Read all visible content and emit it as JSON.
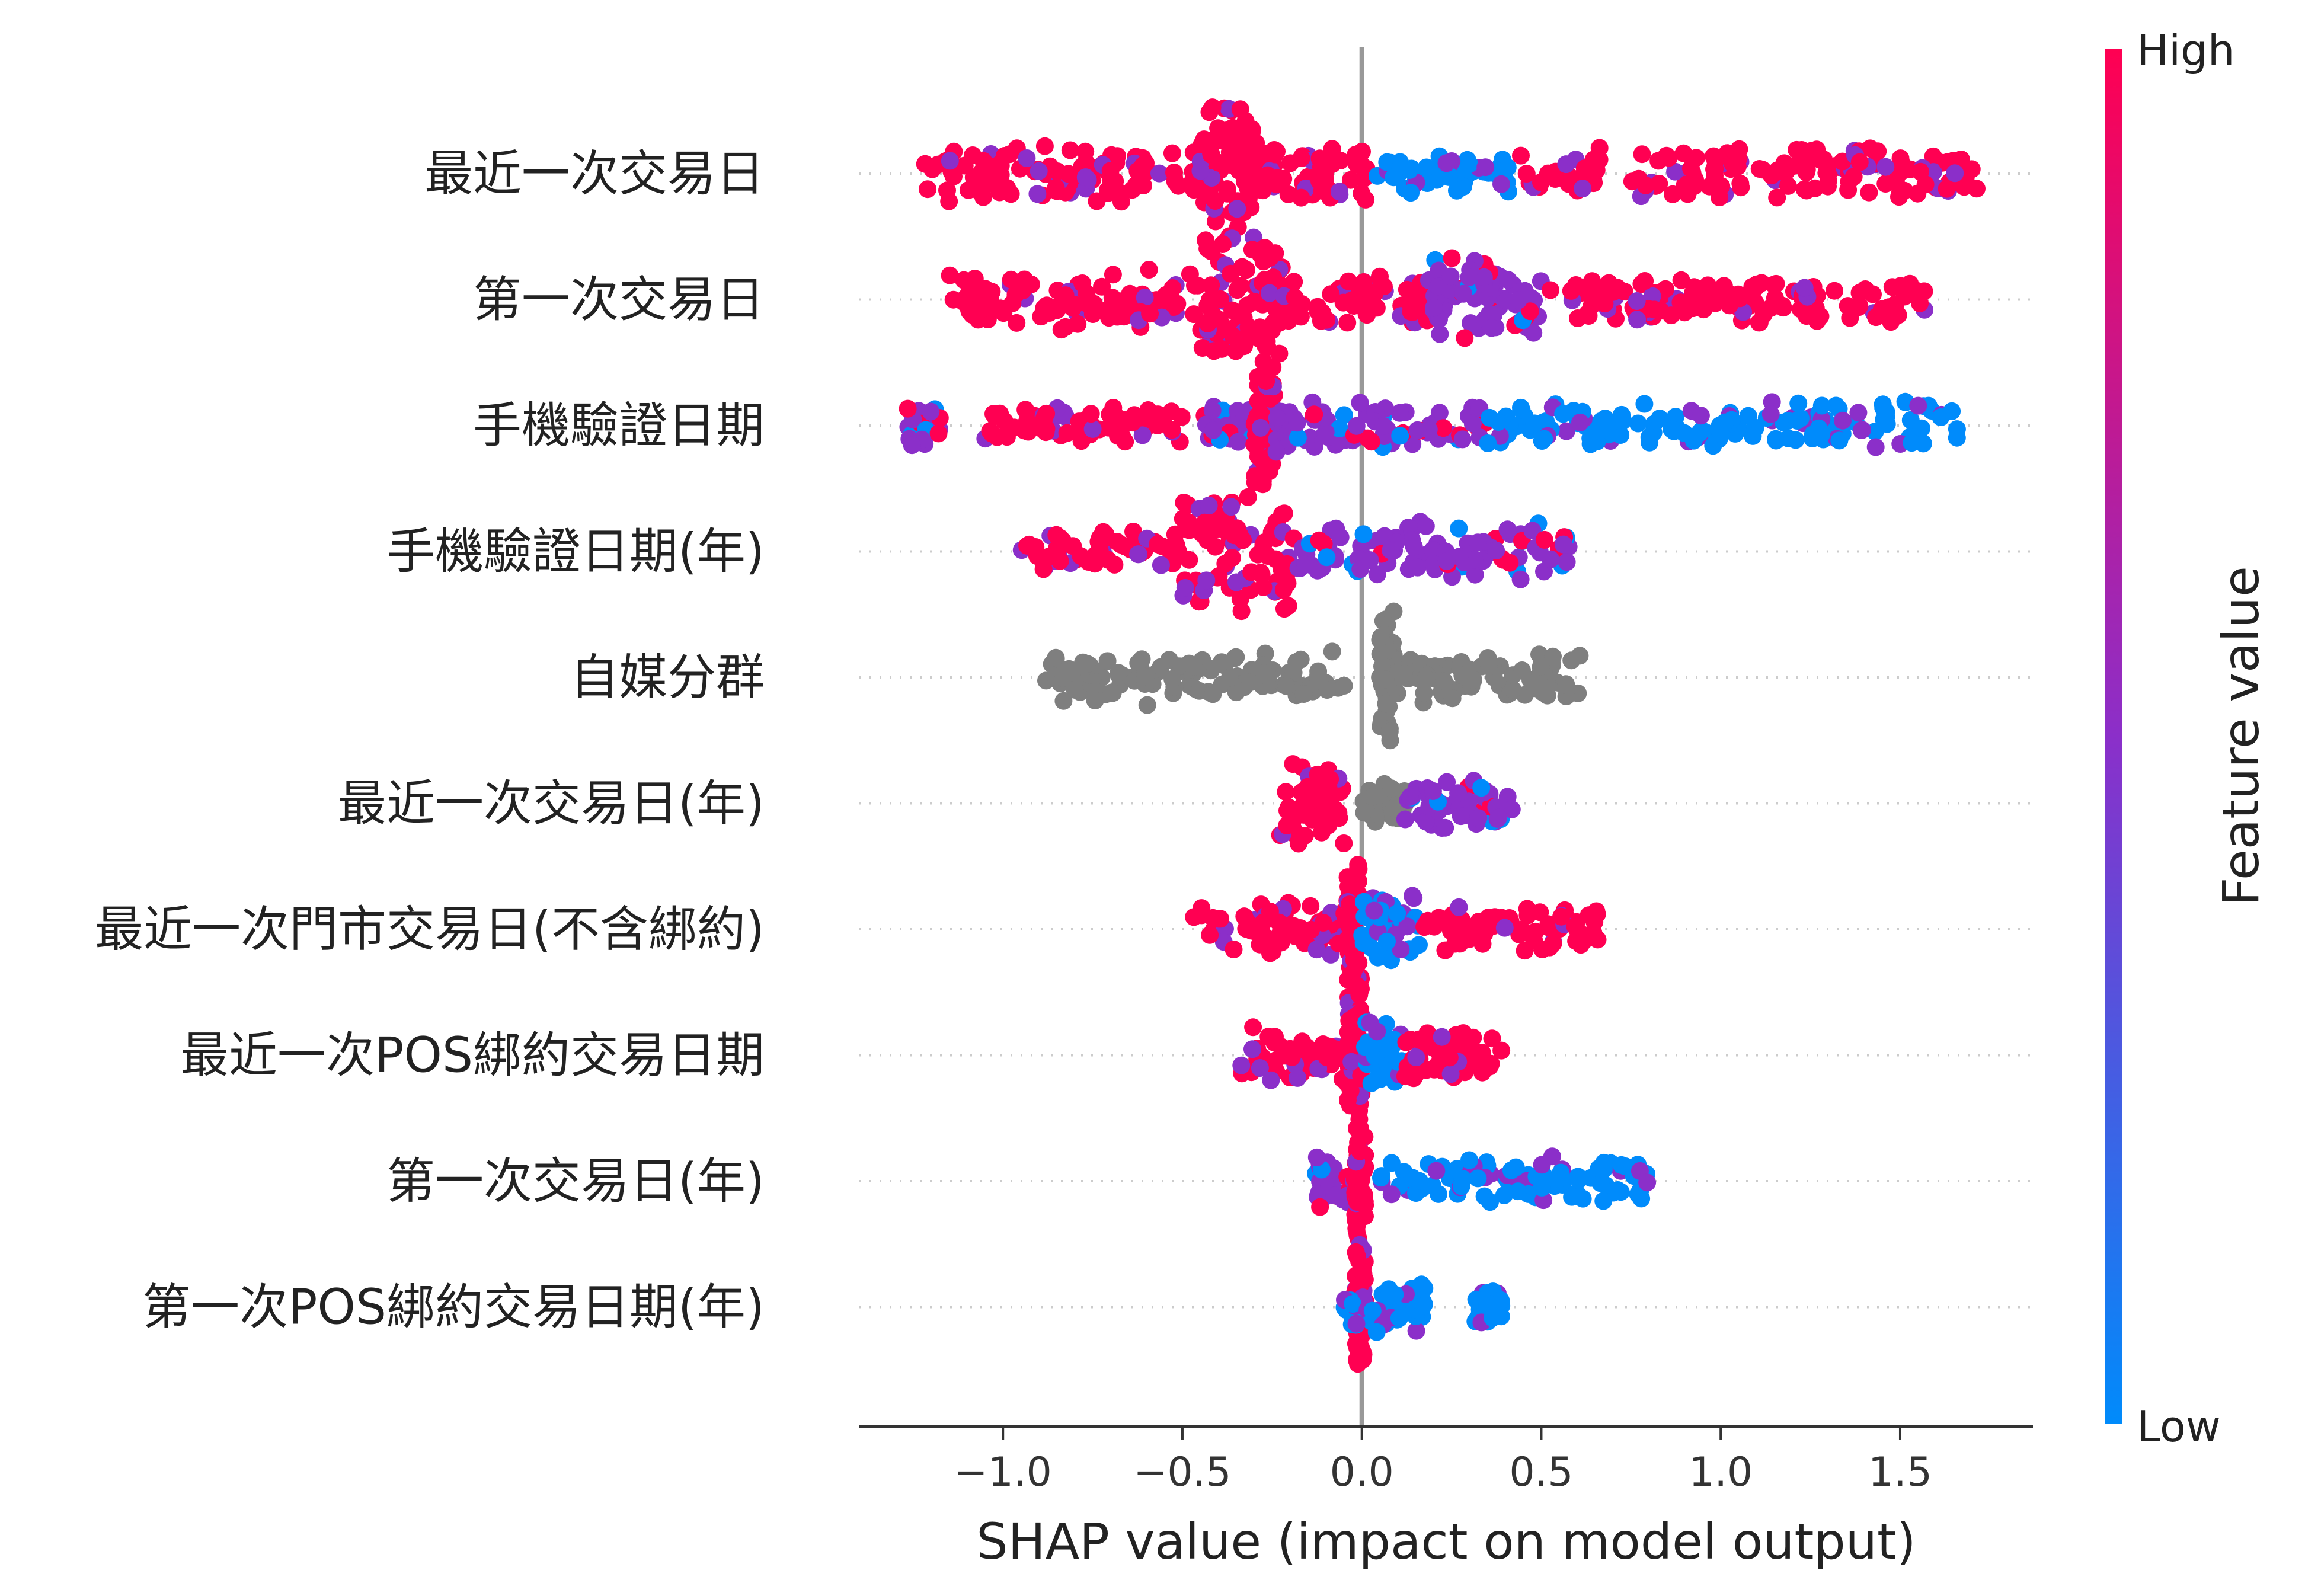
{
  "chart_data": {
    "type": "scatter",
    "subtype": "beeswarm",
    "title": "",
    "xlabel": "SHAP value (impact on model output)",
    "xlim": [
      -1.4,
      1.87
    ],
    "x_ticks": [
      -1.0,
      -0.5,
      0.0,
      0.5,
      1.0,
      1.5
    ],
    "x_tick_labels": [
      "−1.0",
      "−0.5",
      "0.0",
      "0.5",
      "1.0",
      "1.5"
    ],
    "zero_line": true,
    "colorbar": {
      "label": "Feature value",
      "high_label": "High",
      "low_label": "Low",
      "high_color": "#ff0052",
      "mid_color": "#8b2fc9",
      "low_color": "#008bfb",
      "missing_color": "#7f7f7f"
    },
    "features": [
      {
        "name": "最近一次交易日",
        "min": -1.23,
        "max": 1.72,
        "segments": [
          {
            "range": [
              -1.23,
              -0.45
            ],
            "color": "high",
            "width": 0.45
          },
          {
            "range": [
              -0.45,
              -0.3
            ],
            "color": "high",
            "width": 1.0
          },
          {
            "range": [
              -0.3,
              0.02
            ],
            "color": "high",
            "width": 0.5
          },
          {
            "range": [
              0.04,
              0.42
            ],
            "color": "low",
            "width": 0.3
          },
          {
            "range": [
              0.42,
              1.72
            ],
            "color": "high",
            "width": 0.4
          }
        ]
      },
      {
        "name": "第一次交易日",
        "min": -1.15,
        "max": 1.57,
        "segments": [
          {
            "range": [
              -1.15,
              -0.45
            ],
            "color": "high",
            "width": 0.45
          },
          {
            "range": [
              -0.45,
              -0.22
            ],
            "color": "high",
            "width": 1.0
          },
          {
            "range": [
              -0.22,
              0.2
            ],
            "color": "high",
            "width": 0.4
          },
          {
            "range": [
              0.2,
              0.5
            ],
            "color": "mid",
            "width": 0.7
          },
          {
            "range": [
              0.5,
              1.57
            ],
            "color": "high",
            "width": 0.35
          }
        ]
      },
      {
        "name": "手機驗證日期",
        "min": -1.27,
        "max": 1.66,
        "segments": [
          {
            "range": [
              -1.27,
              -1.17
            ],
            "color": "mid",
            "width": 0.3
          },
          {
            "range": [
              -1.05,
              -0.5
            ],
            "color": "high",
            "width": 0.3
          },
          {
            "range": [
              -0.45,
              -0.3
            ],
            "color": "mid",
            "width": 0.3
          },
          {
            "range": [
              -0.3,
              -0.24
            ],
            "color": "high",
            "width": 1.0
          },
          {
            "range": [
              -0.24,
              0.35
            ],
            "color": "mid",
            "width": 0.4
          },
          {
            "range": [
              0.35,
              1.66
            ],
            "color": "low",
            "width": 0.35
          }
        ]
      },
      {
        "name": "手機驗證日期(年)",
        "min": -0.95,
        "max": 0.58,
        "segments": [
          {
            "range": [
              -0.95,
              -0.5
            ],
            "color": "high",
            "width": 0.3
          },
          {
            "range": [
              -0.5,
              -0.2
            ],
            "color": "high",
            "width": 1.0
          },
          {
            "range": [
              -0.2,
              0.58
            ],
            "color": "mid",
            "width": 0.45
          }
        ]
      },
      {
        "name": "自媒分群",
        "min": -0.88,
        "max": 0.62,
        "segments": [
          {
            "range": [
              -0.88,
              -0.04
            ],
            "color": "missing",
            "width": 0.4
          },
          {
            "range": [
              0.05,
              0.62
            ],
            "color": "missing",
            "width": 0.4
          },
          {
            "range": [
              0.05,
              0.09
            ],
            "color": "missing",
            "width": 1.0
          }
        ]
      },
      {
        "name": "最近一次交易日(年)",
        "min": -0.23,
        "max": 0.42,
        "segments": [
          {
            "range": [
              -0.23,
              -0.05
            ],
            "color": "high",
            "width": 0.6
          },
          {
            "range": [
              0.0,
              0.12
            ],
            "color": "missing",
            "width": 0.3
          },
          {
            "range": [
              0.12,
              0.42
            ],
            "color": "mid",
            "width": 0.4
          }
        ]
      },
      {
        "name": "最近一次門市交易日(不含綁約)",
        "min": -0.47,
        "max": 0.66,
        "segments": [
          {
            "range": [
              -0.47,
              -0.04
            ],
            "color": "high",
            "width": 0.45
          },
          {
            "range": [
              -0.04,
              0.0
            ],
            "color": "high",
            "width": 1.0
          },
          {
            "range": [
              0.0,
              0.16
            ],
            "color": "low",
            "width": 0.55
          },
          {
            "range": [
              0.16,
              0.66
            ],
            "color": "high",
            "width": 0.35
          }
        ]
      },
      {
        "name": "最近一次POS綁約交易日期",
        "min": -0.34,
        "max": 0.4,
        "segments": [
          {
            "range": [
              -0.34,
              -0.04
            ],
            "color": "high",
            "width": 0.4
          },
          {
            "range": [
              -0.04,
              0.0
            ],
            "color": "high",
            "width": 1.0
          },
          {
            "range": [
              0.0,
              0.12
            ],
            "color": "low",
            "width": 0.5
          },
          {
            "range": [
              0.12,
              0.4
            ],
            "color": "high",
            "width": 0.35
          }
        ]
      },
      {
        "name": "第一次交易日(年)",
        "min": -0.13,
        "max": 0.8,
        "segments": [
          {
            "range": [
              -0.13,
              -0.02
            ],
            "color": "mid",
            "width": 0.4
          },
          {
            "range": [
              -0.02,
              0.01
            ],
            "color": "high",
            "width": 1.0
          },
          {
            "range": [
              0.05,
              0.8
            ],
            "color": "low",
            "width": 0.35
          }
        ]
      },
      {
        "name": "第一次POS綁約交易日期(年)",
        "min": -0.05,
        "max": 0.39,
        "segments": [
          {
            "range": [
              -0.02,
              0.01
            ],
            "color": "high",
            "width": 1.0
          },
          {
            "range": [
              -0.05,
              0.18
            ],
            "color": "low",
            "width": 0.4
          },
          {
            "range": [
              0.31,
              0.39
            ],
            "color": "low",
            "width": 0.3
          }
        ]
      }
    ]
  }
}
